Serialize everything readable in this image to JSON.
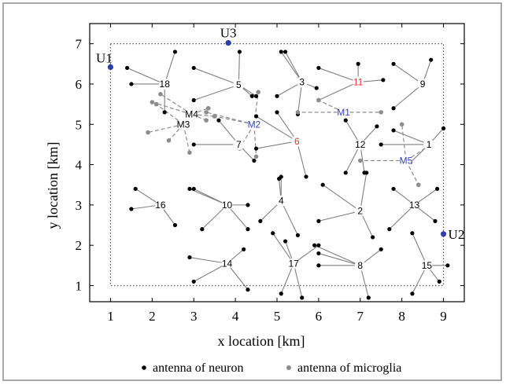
{
  "chart_data": {
    "type": "scatter",
    "title": "",
    "xlabel": "x location [km]",
    "ylabel": "y location [km]",
    "xlim": [
      0.5,
      9.5
    ],
    "ylim": [
      0.6,
      7.5
    ],
    "x_ticks": [
      1,
      2,
      3,
      4,
      5,
      6,
      7,
      8,
      9
    ],
    "y_ticks": [
      1,
      2,
      3,
      4,
      5,
      6,
      7
    ],
    "grid": false,
    "region_box": {
      "x": [
        1,
        9
      ],
      "y": [
        1,
        7
      ]
    },
    "legend": {
      "placement": "bottom",
      "entries": [
        {
          "label": "antenna of neuron",
          "color": "#000000"
        },
        {
          "label": "antenna of microglia",
          "color": "#8c8c8c"
        }
      ]
    },
    "colors": {
      "neuron": "#000000",
      "microglia": "#8c8c8c",
      "neuron_link": "#808080",
      "highlight": "#e8322a",
      "microglia_label": "#3344bb",
      "corner": "#2b3fa8"
    },
    "corners": [
      {
        "label": "U1",
        "x": 1.0,
        "y": 6.42
      },
      {
        "label": "U2",
        "x": 9.0,
        "y": 2.28
      },
      {
        "label": "U3",
        "x": 3.83,
        "y": 7.02
      }
    ],
    "neurons": [
      {
        "label": "1",
        "x": 8.65,
        "y": 4.5,
        "highlight": false,
        "antennas": [
          [
            7.5,
            4.5
          ],
          [
            8.2,
            4.05
          ],
          [
            9.0,
            4.9
          ],
          [
            7.8,
            4.85
          ]
        ]
      },
      {
        "label": "2",
        "x": 7.0,
        "y": 2.85,
        "highlight": false,
        "antennas": [
          [
            6.1,
            3.5
          ],
          [
            6.0,
            2.6
          ],
          [
            7.15,
            3.8
          ],
          [
            7.3,
            2.2
          ]
        ]
      },
      {
        "label": "3",
        "x": 5.6,
        "y": 6.05,
        "highlight": false,
        "antennas": [
          [
            5.1,
            6.8
          ],
          [
            5.2,
            6.8
          ],
          [
            5.95,
            5.9
          ],
          [
            5.5,
            5.25
          ],
          [
            5.0,
            5.7
          ]
        ]
      },
      {
        "label": "4",
        "x": 5.1,
        "y": 3.1,
        "highlight": false,
        "antennas": [
          [
            5.1,
            3.7
          ],
          [
            4.6,
            2.6
          ],
          [
            5.5,
            2.25
          ],
          [
            5.05,
            3.65
          ]
        ]
      },
      {
        "label": "5",
        "x": 4.08,
        "y": 5.98,
        "highlight": false,
        "antennas": [
          [
            3.0,
            6.4
          ],
          [
            4.1,
            6.8
          ],
          [
            3.0,
            5.6
          ],
          [
            4.4,
            5.7
          ],
          [
            4.5,
            5.7
          ]
        ]
      },
      {
        "label": "6",
        "x": 5.48,
        "y": 4.58,
        "highlight": true,
        "antennas": [
          [
            4.5,
            4.4
          ],
          [
            5.0,
            5.3
          ],
          [
            5.7,
            3.7
          ],
          [
            4.5,
            5.2
          ]
        ]
      },
      {
        "label": "7",
        "x": 4.08,
        "y": 4.5,
        "highlight": false,
        "antennas": [
          [
            3.0,
            4.5
          ],
          [
            4.0,
            4.5
          ],
          [
            4.45,
            4.1
          ],
          [
            3.6,
            5.1
          ]
        ]
      },
      {
        "label": "8",
        "x": 7.0,
        "y": 1.5,
        "highlight": false,
        "antennas": [
          [
            6.0,
            1.8
          ],
          [
            6.0,
            1.5
          ],
          [
            7.5,
            1.9
          ],
          [
            7.2,
            0.7
          ],
          [
            5.9,
            2.0
          ]
        ]
      },
      {
        "label": "9",
        "x": 8.5,
        "y": 6.0,
        "highlight": false,
        "antennas": [
          [
            7.8,
            6.5
          ],
          [
            8.7,
            6.6
          ],
          [
            7.8,
            5.4
          ]
        ]
      },
      {
        "label": "10",
        "x": 3.8,
        "y": 3.0,
        "highlight": false,
        "antennas": [
          [
            2.9,
            3.4
          ],
          [
            3.0,
            3.4
          ],
          [
            3.2,
            2.4
          ],
          [
            4.3,
            3.0
          ],
          [
            4.3,
            2.4
          ]
        ]
      },
      {
        "label": "11",
        "x": 6.95,
        "y": 6.05,
        "highlight": true,
        "antennas": [
          [
            6.0,
            6.4
          ],
          [
            6.95,
            6.5
          ],
          [
            7.55,
            6.1
          ],
          [
            6.0,
            5.6
          ]
        ]
      },
      {
        "label": "12",
        "x": 7.0,
        "y": 4.5,
        "highlight": false,
        "antennas": [
          [
            6.65,
            5.1
          ],
          [
            7.4,
            4.95
          ],
          [
            6.65,
            3.8
          ],
          [
            7.1,
            3.8
          ]
        ]
      },
      {
        "label": "13",
        "x": 8.3,
        "y": 3.0,
        "highlight": false,
        "antennas": [
          [
            7.8,
            3.4
          ],
          [
            8.85,
            3.4
          ],
          [
            7.7,
            2.4
          ],
          [
            8.8,
            2.6
          ]
        ]
      },
      {
        "label": "14",
        "x": 3.8,
        "y": 1.55,
        "highlight": false,
        "antennas": [
          [
            2.9,
            1.7
          ],
          [
            3.0,
            1.1
          ],
          [
            4.2,
            1.9
          ],
          [
            4.3,
            0.9
          ]
        ]
      },
      {
        "label": "15",
        "x": 8.6,
        "y": 1.5,
        "highlight": false,
        "antennas": [
          [
            8.25,
            2.3
          ],
          [
            8.25,
            0.8
          ],
          [
            9.1,
            1.5
          ],
          [
            8.9,
            1.1
          ]
        ]
      },
      {
        "label": "16",
        "x": 2.2,
        "y": 3.0,
        "highlight": false,
        "antennas": [
          [
            1.6,
            3.4
          ],
          [
            1.5,
            2.9
          ],
          [
            2.55,
            2.5
          ]
        ]
      },
      {
        "label": "17",
        "x": 5.4,
        "y": 1.55,
        "highlight": false,
        "antennas": [
          [
            4.9,
            2.3
          ],
          [
            5.2,
            2.1
          ],
          [
            5.1,
            0.8
          ],
          [
            5.6,
            0.7
          ],
          [
            6.0,
            2.0
          ]
        ]
      },
      {
        "label": "18",
        "x": 2.3,
        "y": 6.0,
        "highlight": false,
        "antennas": [
          [
            1.4,
            6.4
          ],
          [
            1.5,
            6.0
          ],
          [
            2.55,
            6.8
          ],
          [
            2.3,
            5.3
          ]
        ]
      }
    ],
    "microglia": [
      {
        "label": "M1",
        "x": 6.6,
        "y": 5.3,
        "antennas": [
          [
            5.5,
            5.3
          ],
          [
            7.5,
            5.3
          ],
          [
            6.0,
            5.6
          ],
          [
            6.6,
            5.3
          ]
        ]
      },
      {
        "label": "M2",
        "x": 4.45,
        "y": 5.0,
        "antennas": [
          [
            3.5,
            5.2
          ],
          [
            4.55,
            5.8
          ],
          [
            4.1,
            4.4
          ],
          [
            4.5,
            4.2
          ],
          [
            3.3,
            5.3
          ]
        ]
      },
      {
        "label": "M3",
        "x": 2.75,
        "y": 5.0,
        "antennas": [
          [
            1.9,
            4.8
          ],
          [
            2.4,
            4.6
          ],
          [
            2.9,
            4.3
          ],
          [
            2.1,
            5.5
          ]
        ]
      },
      {
        "label": "M4",
        "x": 2.95,
        "y": 5.25,
        "antennas": [
          [
            2.0,
            5.55
          ],
          [
            2.2,
            5.75
          ],
          [
            3.35,
            5.4
          ],
          [
            3.5,
            5.2
          ],
          [
            3.3,
            5.1
          ]
        ]
      },
      {
        "label": "M5",
        "x": 8.1,
        "y": 4.1,
        "antennas": [
          [
            7.0,
            4.1
          ],
          [
            8.0,
            5.0
          ],
          [
            8.4,
            3.5
          ],
          [
            8.7,
            4.5
          ]
        ]
      }
    ]
  }
}
